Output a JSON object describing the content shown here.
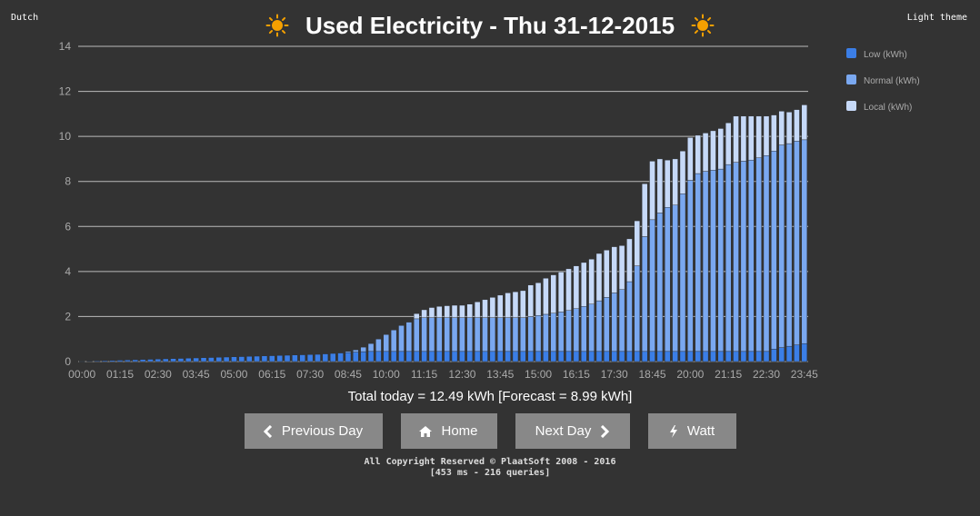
{
  "header": {
    "language_link": "Dutch",
    "theme_link": "Light theme",
    "title": "Used Electricity - Thu 31-12-2015",
    "icon": "sun-icon"
  },
  "colors": {
    "background": "#333333",
    "low": "#3b7ee6",
    "normal": "#7aa8f0",
    "local": "#c6d9f8",
    "button": "#888888",
    "sun": "#f5a000"
  },
  "chart_data": {
    "type": "bar",
    "stacked": true,
    "ylim": [
      0,
      14
    ],
    "yticks": [
      0,
      2,
      4,
      6,
      8,
      10,
      12,
      14
    ],
    "xtick_labels": [
      "00:00",
      "01:15",
      "02:30",
      "03:45",
      "05:00",
      "06:15",
      "07:30",
      "08:45",
      "10:00",
      "11:15",
      "12:30",
      "13:45",
      "15:00",
      "16:15",
      "17:30",
      "18:45",
      "20:00",
      "21:15",
      "22:30",
      "23:45"
    ],
    "xtick_every": 5,
    "grid": true,
    "legend_position": "right",
    "bar_count": 96,
    "interval_minutes": 15,
    "series": [
      {
        "name": "Low (kWh)",
        "color": "#3b7ee6",
        "values": [
          0.01,
          0.02,
          0.03,
          0.04,
          0.05,
          0.06,
          0.07,
          0.08,
          0.09,
          0.1,
          0.11,
          0.12,
          0.13,
          0.14,
          0.15,
          0.16,
          0.17,
          0.18,
          0.19,
          0.2,
          0.21,
          0.22,
          0.23,
          0.24,
          0.25,
          0.26,
          0.27,
          0.28,
          0.29,
          0.3,
          0.31,
          0.32,
          0.34,
          0.36,
          0.38,
          0.4,
          0.42,
          0.44,
          0.45,
          0.45,
          0.45,
          0.45,
          0.45,
          0.45,
          0.45,
          0.45,
          0.45,
          0.45,
          0.45,
          0.45,
          0.45,
          0.45,
          0.45,
          0.45,
          0.45,
          0.45,
          0.45,
          0.45,
          0.45,
          0.45,
          0.45,
          0.45,
          0.45,
          0.45,
          0.45,
          0.45,
          0.45,
          0.45,
          0.45,
          0.45,
          0.45,
          0.45,
          0.45,
          0.45,
          0.45,
          0.45,
          0.45,
          0.45,
          0.45,
          0.45,
          0.45,
          0.45,
          0.45,
          0.45,
          0.45,
          0.45,
          0.45,
          0.45,
          0.45,
          0.45,
          0.45,
          0.55,
          0.62,
          0.68,
          0.74,
          0.8
        ]
      },
      {
        "name": "Normal (kWh)",
        "color": "#7aa8f0",
        "values": [
          0,
          0,
          0,
          0,
          0,
          0,
          0,
          0,
          0,
          0,
          0,
          0,
          0,
          0,
          0,
          0,
          0,
          0,
          0,
          0,
          0,
          0,
          0,
          0,
          0,
          0,
          0,
          0,
          0,
          0,
          0,
          0,
          0,
          0,
          0,
          0.05,
          0.1,
          0.2,
          0.35,
          0.55,
          0.75,
          0.95,
          1.15,
          1.3,
          1.45,
          1.5,
          1.5,
          1.5,
          1.5,
          1.5,
          1.5,
          1.5,
          1.5,
          1.5,
          1.5,
          1.5,
          1.5,
          1.5,
          1.5,
          1.55,
          1.6,
          1.65,
          1.7,
          1.75,
          1.82,
          1.9,
          2.0,
          2.1,
          2.25,
          2.4,
          2.6,
          2.75,
          3.1,
          3.8,
          5.1,
          5.85,
          6.15,
          6.4,
          6.5,
          7.0,
          7.6,
          7.9,
          8.0,
          8.05,
          8.1,
          8.3,
          8.4,
          8.45,
          8.5,
          8.6,
          8.7,
          8.8,
          9.0,
          9.0,
          9.05,
          9.05
        ]
      },
      {
        "name": "Local (kWh)",
        "color": "#c6d9f8",
        "values": [
          0,
          0,
          0,
          0,
          0,
          0,
          0,
          0,
          0,
          0,
          0,
          0,
          0,
          0,
          0,
          0,
          0,
          0,
          0,
          0,
          0,
          0,
          0,
          0,
          0,
          0,
          0,
          0,
          0,
          0,
          0,
          0,
          0,
          0,
          0,
          0,
          0,
          0,
          0,
          0,
          0,
          0,
          0,
          0,
          0.23,
          0.35,
          0.45,
          0.5,
          0.53,
          0.55,
          0.55,
          0.6,
          0.7,
          0.8,
          0.9,
          1.0,
          1.1,
          1.15,
          1.2,
          1.4,
          1.45,
          1.6,
          1.7,
          1.78,
          1.85,
          1.9,
          1.95,
          2.0,
          2.1,
          2.1,
          2.05,
          1.95,
          1.9,
          2.0,
          2.35,
          2.6,
          2.4,
          2.1,
          2.05,
          1.9,
          1.9,
          1.7,
          1.7,
          1.75,
          1.8,
          1.85,
          2.05,
          2.0,
          1.95,
          1.85,
          1.75,
          1.6,
          1.5,
          1.4,
          1.4,
          1.55
        ]
      }
    ]
  },
  "summary": {
    "total_text": "Total today = 12.49 kWh [Forecast = 8.99 kWh]"
  },
  "nav": {
    "prev_label": "Previous Day",
    "home_label": "Home",
    "next_label": "Next Day",
    "watt_label": "Watt"
  },
  "footer": {
    "copyright": "All Copyright Reserved © PlaatSoft 2008 - 2016",
    "stats": "[453 ms - 216 queries]"
  }
}
